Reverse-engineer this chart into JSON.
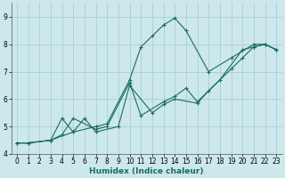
{
  "xlabel": "Humidex (Indice chaleur)",
  "bg_color": "#cce8ec",
  "grid_color": "#aacfd4",
  "line_color": "#1a6b62",
  "xlim": [
    -0.5,
    23.5
  ],
  "ylim": [
    4.0,
    9.5
  ],
  "xticks": [
    0,
    1,
    2,
    3,
    4,
    5,
    6,
    7,
    8,
    9,
    10,
    11,
    12,
    13,
    14,
    15,
    16,
    17,
    18,
    19,
    20,
    21,
    22,
    23
  ],
  "yticks": [
    4,
    5,
    6,
    7,
    8,
    9
  ],
  "series": {
    "line1": {
      "x": [
        0,
        1,
        3,
        4,
        5,
        7,
        8,
        10,
        11,
        13,
        14,
        15,
        16,
        18,
        20,
        21,
        22,
        23
      ],
      "y": [
        4.4,
        4.4,
        4.5,
        4.7,
        5.3,
        4.9,
        5.0,
        6.6,
        5.4,
        5.9,
        6.1,
        6.4,
        5.9,
        6.7,
        7.8,
        7.9,
        8.0,
        7.8
      ]
    },
    "line2": {
      "x": [
        0,
        1,
        3,
        4,
        5,
        7,
        8,
        10,
        11,
        12,
        13,
        14,
        15,
        17,
        19,
        21,
        22,
        23
      ],
      "y": [
        4.4,
        4.4,
        4.5,
        5.3,
        4.8,
        5.0,
        5.1,
        6.7,
        7.9,
        8.3,
        8.7,
        8.95,
        8.5,
        7.0,
        7.5,
        8.0,
        8.0,
        7.8
      ]
    },
    "line3": {
      "x": [
        0,
        1,
        3,
        5,
        6,
        7,
        9,
        10,
        12,
        13,
        14,
        16,
        17,
        19,
        20,
        21,
        22,
        23
      ],
      "y": [
        4.4,
        4.4,
        4.5,
        4.8,
        5.3,
        4.8,
        5.0,
        6.5,
        5.5,
        5.8,
        6.0,
        5.85,
        6.3,
        7.1,
        7.5,
        7.9,
        8.0,
        7.8
      ]
    }
  }
}
